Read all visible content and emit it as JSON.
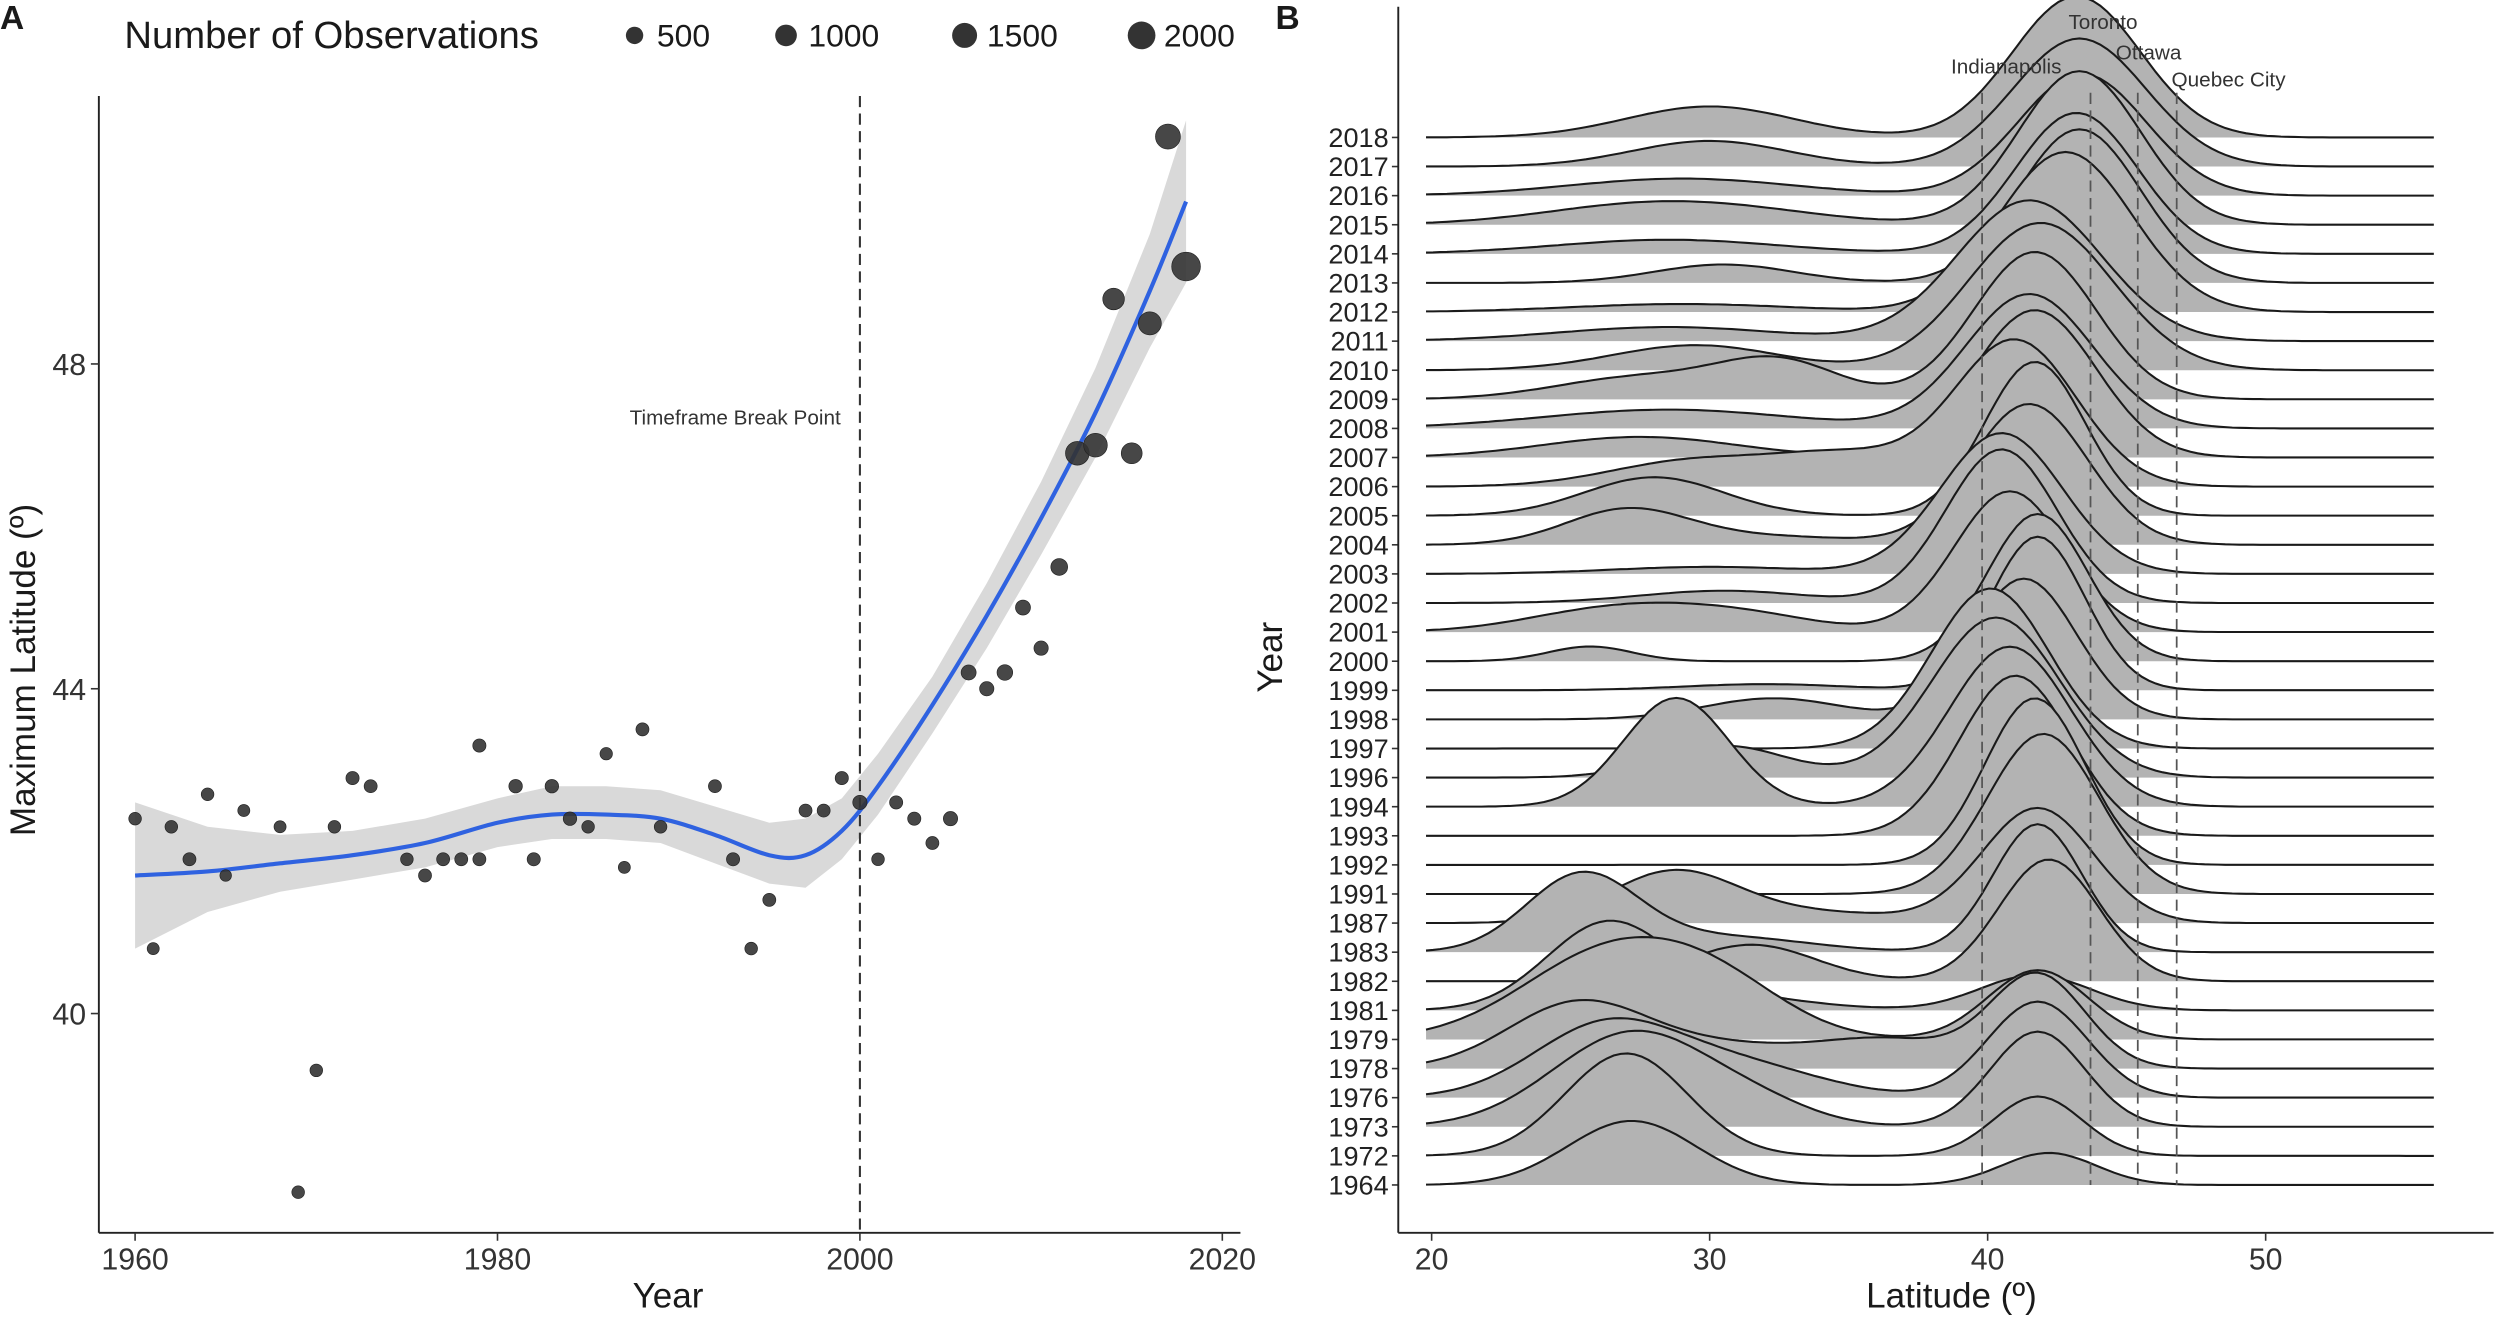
{
  "panel_labels": {
    "a": "A",
    "b": "B"
  },
  "chart_data": [
    {
      "type": "scatter",
      "panel": "A",
      "title": "",
      "xlabel": "Year",
      "ylabel": "Maximum Latitude (º)",
      "xlim": [
        1958,
        2021
      ],
      "ylim": [
        37.3,
        51.3
      ],
      "xticks": [
        1960,
        1980,
        2000,
        2020
      ],
      "xtick_labels": [
        "1960",
        "1980",
        "2000",
        "2020"
      ],
      "yticks": [
        40,
        44,
        48
      ],
      "ytick_labels": [
        "40",
        "44",
        "48"
      ],
      "grid": false,
      "legend": {
        "title": "Number of Observations",
        "placement": "top",
        "entries": [
          {
            "label": "500",
            "value": 500
          },
          {
            "label": "1000",
            "value": 1000
          },
          {
            "label": "1500",
            "value": 1500
          },
          {
            "label": "2000",
            "value": 2000
          }
        ]
      },
      "annotation": {
        "text": "Timeframe Break Point",
        "x": 2000
      },
      "vline": 2000,
      "point_color": "#333333",
      "smooth_color": "#2f62e0",
      "ribbon_color": "#d9d9d9",
      "points": [
        {
          "year": 1960,
          "lat": 42.4,
          "n": 150
        },
        {
          "year": 1961,
          "lat": 40.8,
          "n": 120
        },
        {
          "year": 1962,
          "lat": 42.3,
          "n": 150
        },
        {
          "year": 1963,
          "lat": 41.9,
          "n": 170
        },
        {
          "year": 1964,
          "lat": 42.7,
          "n": 150
        },
        {
          "year": 1965,
          "lat": 41.7,
          "n": 100
        },
        {
          "year": 1966,
          "lat": 42.5,
          "n": 120
        },
        {
          "year": 1968,
          "lat": 42.3,
          "n": 120
        },
        {
          "year": 1969,
          "lat": 37.8,
          "n": 150
        },
        {
          "year": 1970,
          "lat": 39.3,
          "n": 150
        },
        {
          "year": 1971,
          "lat": 42.3,
          "n": 150
        },
        {
          "year": 1972,
          "lat": 42.9,
          "n": 180
        },
        {
          "year": 1973,
          "lat": 42.8,
          "n": 170
        },
        {
          "year": 1975,
          "lat": 41.9,
          "n": 150
        },
        {
          "year": 1976,
          "lat": 41.7,
          "n": 170
        },
        {
          "year": 1977,
          "lat": 41.9,
          "n": 170
        },
        {
          "year": 1978,
          "lat": 41.9,
          "n": 170
        },
        {
          "year": 1979,
          "lat": 41.9,
          "n": 170
        },
        {
          "year": 1979,
          "lat": 43.3,
          "n": 180
        },
        {
          "year": 1981,
          "lat": 42.8,
          "n": 200
        },
        {
          "year": 1982,
          "lat": 41.9,
          "n": 180
        },
        {
          "year": 1983,
          "lat": 42.8,
          "n": 200
        },
        {
          "year": 1984,
          "lat": 42.4,
          "n": 200
        },
        {
          "year": 1985,
          "lat": 42.3,
          "n": 150
        },
        {
          "year": 1986,
          "lat": 43.2,
          "n": 140
        },
        {
          "year": 1987,
          "lat": 41.8,
          "n": 120
        },
        {
          "year": 1988,
          "lat": 43.5,
          "n": 170
        },
        {
          "year": 1989,
          "lat": 42.3,
          "n": 150
        },
        {
          "year": 1992,
          "lat": 42.8,
          "n": 170
        },
        {
          "year": 1993,
          "lat": 41.9,
          "n": 180
        },
        {
          "year": 1994,
          "lat": 40.8,
          "n": 150
        },
        {
          "year": 1995,
          "lat": 41.4,
          "n": 170
        },
        {
          "year": 1997,
          "lat": 42.5,
          "n": 170
        },
        {
          "year": 1998,
          "lat": 42.5,
          "n": 170
        },
        {
          "year": 1999,
          "lat": 42.9,
          "n": 180
        },
        {
          "year": 2000,
          "lat": 42.6,
          "n": 250
        },
        {
          "year": 2001,
          "lat": 41.9,
          "n": 150
        },
        {
          "year": 2002,
          "lat": 42.6,
          "n": 180
        },
        {
          "year": 2003,
          "lat": 42.4,
          "n": 180
        },
        {
          "year": 2004,
          "lat": 42.1,
          "n": 170
        },
        {
          "year": 2005,
          "lat": 42.4,
          "n": 250
        },
        {
          "year": 2006,
          "lat": 44.2,
          "n": 300
        },
        {
          "year": 2007,
          "lat": 44.0,
          "n": 250
        },
        {
          "year": 2008,
          "lat": 44.2,
          "n": 350
        },
        {
          "year": 2009,
          "lat": 45.0,
          "n": 300
        },
        {
          "year": 2010,
          "lat": 44.5,
          "n": 250
        },
        {
          "year": 2011,
          "lat": 45.5,
          "n": 450
        },
        {
          "year": 2012,
          "lat": 46.9,
          "n": 1300
        },
        {
          "year": 2013,
          "lat": 47.0,
          "n": 1300
        },
        {
          "year": 2014,
          "lat": 48.8,
          "n": 1000
        },
        {
          "year": 2015,
          "lat": 46.9,
          "n": 900
        },
        {
          "year": 2016,
          "lat": 48.5,
          "n": 1200
        },
        {
          "year": 2017,
          "lat": 50.8,
          "n": 1500
        },
        {
          "year": 2018,
          "lat": 49.2,
          "n": 2200
        }
      ],
      "smooth": {
        "x": [
          1960,
          1964,
          1968,
          1972,
          1976,
          1980,
          1983,
          1986,
          1989,
          1992,
          1995,
          1997,
          1999,
          2001,
          2004,
          2007,
          2010,
          2013,
          2016,
          2018
        ],
        "y": [
          41.7,
          41.75,
          41.85,
          41.95,
          42.1,
          42.35,
          42.45,
          42.45,
          42.4,
          42.2,
          41.95,
          41.95,
          42.25,
          42.8,
          43.8,
          44.9,
          46.1,
          47.4,
          48.9,
          50.0
        ],
        "ylower": [
          40.8,
          41.25,
          41.5,
          41.65,
          41.8,
          42.05,
          42.15,
          42.15,
          42.1,
          41.85,
          41.6,
          41.55,
          41.9,
          42.45,
          43.45,
          44.5,
          45.65,
          46.85,
          48.2,
          49.0
        ],
        "yupper": [
          42.6,
          42.3,
          42.2,
          42.25,
          42.4,
          42.65,
          42.8,
          42.8,
          42.75,
          42.55,
          42.35,
          42.4,
          42.65,
          43.2,
          44.15,
          45.3,
          46.55,
          47.95,
          49.6,
          51.0
        ]
      }
    },
    {
      "type": "area",
      "subtype": "ridgeline",
      "panel": "B",
      "xlabel": "Latitude (º)",
      "ylabel": "Year",
      "xlim": [
        18.8,
        58.2
      ],
      "xticks": [
        20,
        30,
        40,
        50
      ],
      "xtick_labels": [
        "20",
        "30",
        "40",
        "50"
      ],
      "density_range": [
        19.8,
        56.2
      ],
      "fill_color": "#b3b3b3",
      "line_color": "#1a1a1a",
      "grid": false,
      "reference_lines": [
        {
          "label": "Indianapolis",
          "lat": 39.8
        },
        {
          "label": "Toronto",
          "lat": 43.7
        },
        {
          "label": "Ottawa",
          "lat": 45.4
        },
        {
          "label": "Quebec City",
          "lat": 46.8
        }
      ],
      "rows": [
        {
          "year": "2018",
          "height": 2.2,
          "peaks": [
            [
              30,
              3.0,
              0.22
            ],
            [
              43.2,
              2.3,
              1.0
            ]
          ]
        },
        {
          "year": "2017",
          "height": 2.0,
          "peaks": [
            [
              30,
              2.8,
              0.2
            ],
            [
              43.3,
              2.4,
              1.0
            ]
          ]
        },
        {
          "year": "2016",
          "height": 1.9,
          "peaks": [
            [
              29,
              4.0,
              0.14
            ],
            [
              43.4,
              2.3,
              1.0
            ]
          ]
        },
        {
          "year": "2015",
          "height": 2.4,
          "peaks": [
            [
              27,
              3.5,
              0.1
            ],
            [
              31,
              3.5,
              0.08
            ],
            [
              43.3,
              2.2,
              1.0
            ]
          ]
        },
        {
          "year": "2014",
          "height": 2.2,
          "peaks": [
            [
              28.5,
              4.0,
              0.1
            ],
            [
              43.2,
              2.2,
              1.0
            ]
          ]
        },
        {
          "year": "2013",
          "height": 2.4,
          "peaks": [
            [
              30.5,
              2.5,
              0.12
            ],
            [
              43.3,
              2.2,
              1.0
            ]
          ]
        },
        {
          "year": "2012",
          "height": 2.5,
          "peaks": [
            [
              29,
              4.0,
              0.05
            ],
            [
              42.8,
              2.4,
              1.0
            ]
          ]
        },
        {
          "year": "2011",
          "height": 2.2,
          "peaks": [
            [
              28.5,
              4.0,
              0.1
            ],
            [
              41.5,
              2.6,
              1.0
            ]
          ]
        },
        {
          "year": "2010",
          "height": 2.3,
          "peaks": [
            [
              29.5,
              3.0,
              0.17
            ],
            [
              41.9,
              2.6,
              1.0
            ]
          ]
        },
        {
          "year": "2009",
          "height": 2.3,
          "peaks": [
            [
              27.5,
              3.0,
              0.15
            ],
            [
              32.5,
              2.2,
              0.25
            ],
            [
              41.7,
              2.2,
              1.0
            ]
          ]
        },
        {
          "year": "2008",
          "height": 2.1,
          "peaks": [
            [
              28.5,
              4.5,
              0.14
            ],
            [
              41.5,
              2.3,
              1.0
            ]
          ]
        },
        {
          "year": "2007",
          "height": 2.3,
          "peaks": [
            [
              27.5,
              3.5,
              0.14
            ],
            [
              41.7,
              2.2,
              1.0
            ]
          ]
        },
        {
          "year": "2006",
          "height": 2.3,
          "peaks": [
            [
              29.5,
              3.0,
              0.18
            ],
            [
              35,
              2.5,
              0.2
            ],
            [
              41.0,
              2.2,
              1.0
            ]
          ]
        },
        {
          "year": "2005",
          "height": 2.4,
          "peaks": [
            [
              28,
              2.5,
              0.25
            ],
            [
              41.7,
              1.8,
              1.0
            ]
          ]
        },
        {
          "year": "2004",
          "height": 2.2,
          "peaks": [
            [
              27,
              2.2,
              0.24
            ],
            [
              32,
              3.5,
              0.06
            ],
            [
              41.5,
              2.1,
              1.0
            ]
          ]
        },
        {
          "year": "2003",
          "height": 2.2,
          "peaks": [
            [
              30,
              3.5,
              0.05
            ],
            [
              40.5,
              2.2,
              1.0
            ]
          ]
        },
        {
          "year": "2002",
          "height": 2.4,
          "peaks": [
            [
              30.5,
              3.0,
              0.08
            ],
            [
              40.5,
              2.0,
              1.0
            ]
          ]
        },
        {
          "year": "2001",
          "height": 2.2,
          "peaks": [
            [
              26.5,
              3.0,
              0.16
            ],
            [
              31,
              2.8,
              0.12
            ],
            [
              40.8,
              2.0,
              1.0
            ]
          ]
        },
        {
          "year": "2000",
          "height": 2.3,
          "peaks": [
            [
              25.7,
              1.5,
              0.1
            ],
            [
              41.8,
              1.8,
              1.0
            ]
          ]
        },
        {
          "year": "1999",
          "height": 2.4,
          "peaks": [
            [
              32,
              3.0,
              0.04
            ],
            [
              41.8,
              1.7,
              1.0
            ]
          ]
        },
        {
          "year": "1998",
          "height": 2.2,
          "peaks": [
            [
              32.3,
              2.5,
              0.15
            ],
            [
              41.3,
              1.9,
              1.0
            ]
          ]
        },
        {
          "year": "1997",
          "height": 2.5,
          "peaks": [
            [
              40.1,
              2.1,
              1.0
            ]
          ]
        },
        {
          "year": "1996",
          "height": 2.5,
          "peaks": [
            [
              30.5,
              2.3,
              0.2
            ],
            [
              40.3,
              2.3,
              1.0
            ]
          ]
        },
        {
          "year": "1994",
          "height": 2.5,
          "peaks": [
            [
              28.8,
              1.9,
              0.68
            ],
            [
              40.8,
              2.2,
              1.0
            ]
          ]
        },
        {
          "year": "1993",
          "height": 2.5,
          "peaks": [
            [
              41.0,
              2.0,
              1.0
            ]
          ]
        },
        {
          "year": "1992",
          "height": 2.6,
          "peaks": [
            [
              41.7,
              1.8,
              1.0
            ]
          ]
        },
        {
          "year": "1991",
          "height": 2.5,
          "peaks": [
            [
              42.0,
              2.0,
              1.0
            ]
          ]
        },
        {
          "year": "1987",
          "height": 1.8,
          "peaks": [
            [
              28.7,
              2.3,
              0.4
            ],
            [
              34,
              3.0,
              0.08
            ],
            [
              41.8,
              2.0,
              0.9
            ]
          ]
        },
        {
          "year": "1983",
          "height": 2.0,
          "peaks": [
            [
              25.4,
              2.0,
              0.6
            ],
            [
              30.5,
              3.0,
              0.12
            ],
            [
              41.8,
              1.6,
              1.0
            ]
          ]
        },
        {
          "year": "1982",
          "height": 1.9,
          "peaks": [
            [
              31.5,
              2.3,
              0.3
            ],
            [
              42.2,
              1.8,
              1.0
            ]
          ]
        },
        {
          "year": "1981",
          "height": 1.4,
          "peaks": [
            [
              26.3,
              2.2,
              0.72
            ],
            [
              30.5,
              3.0,
              0.12
            ],
            [
              41.7,
              2.0,
              0.3
            ]
          ]
        },
        {
          "year": "1979",
          "height": 1.6,
          "peaks": [
            [
              26.5,
              3.2,
              0.7
            ],
            [
              30.5,
              2.5,
              0.3
            ],
            [
              41.8,
              1.8,
              0.55
            ]
          ]
        },
        {
          "year": "1978",
          "height": 1.5,
          "peaks": [
            [
              25.2,
              2.5,
              0.65
            ],
            [
              30.5,
              3.0,
              0.22
            ],
            [
              36.5,
              2.5,
              0.28
            ],
            [
              41.8,
              1.7,
              0.95
            ]
          ]
        },
        {
          "year": "1976",
          "height": 1.5,
          "peaks": [
            [
              26.2,
              2.6,
              0.65
            ],
            [
              31,
              3.0,
              0.3
            ],
            [
              41.8,
              1.8,
              0.9
            ]
          ]
        },
        {
          "year": "1973",
          "height": 1.5,
          "peaks": [
            [
              27.3,
              2.9,
              0.7
            ],
            [
              32,
              2.0,
              0.1
            ],
            [
              41.8,
              1.7,
              0.7
            ]
          ]
        },
        {
          "year": "1972",
          "height": 1.6,
          "peaks": [
            [
              27.0,
              2.2,
              0.95
            ],
            [
              41.8,
              1.6,
              0.55
            ]
          ]
        },
        {
          "year": "1964",
          "height": 1.0,
          "peaks": [
            [
              27.2,
              2.3,
              1.0
            ],
            [
              42.2,
              1.7,
              0.5
            ]
          ]
        }
      ]
    }
  ]
}
